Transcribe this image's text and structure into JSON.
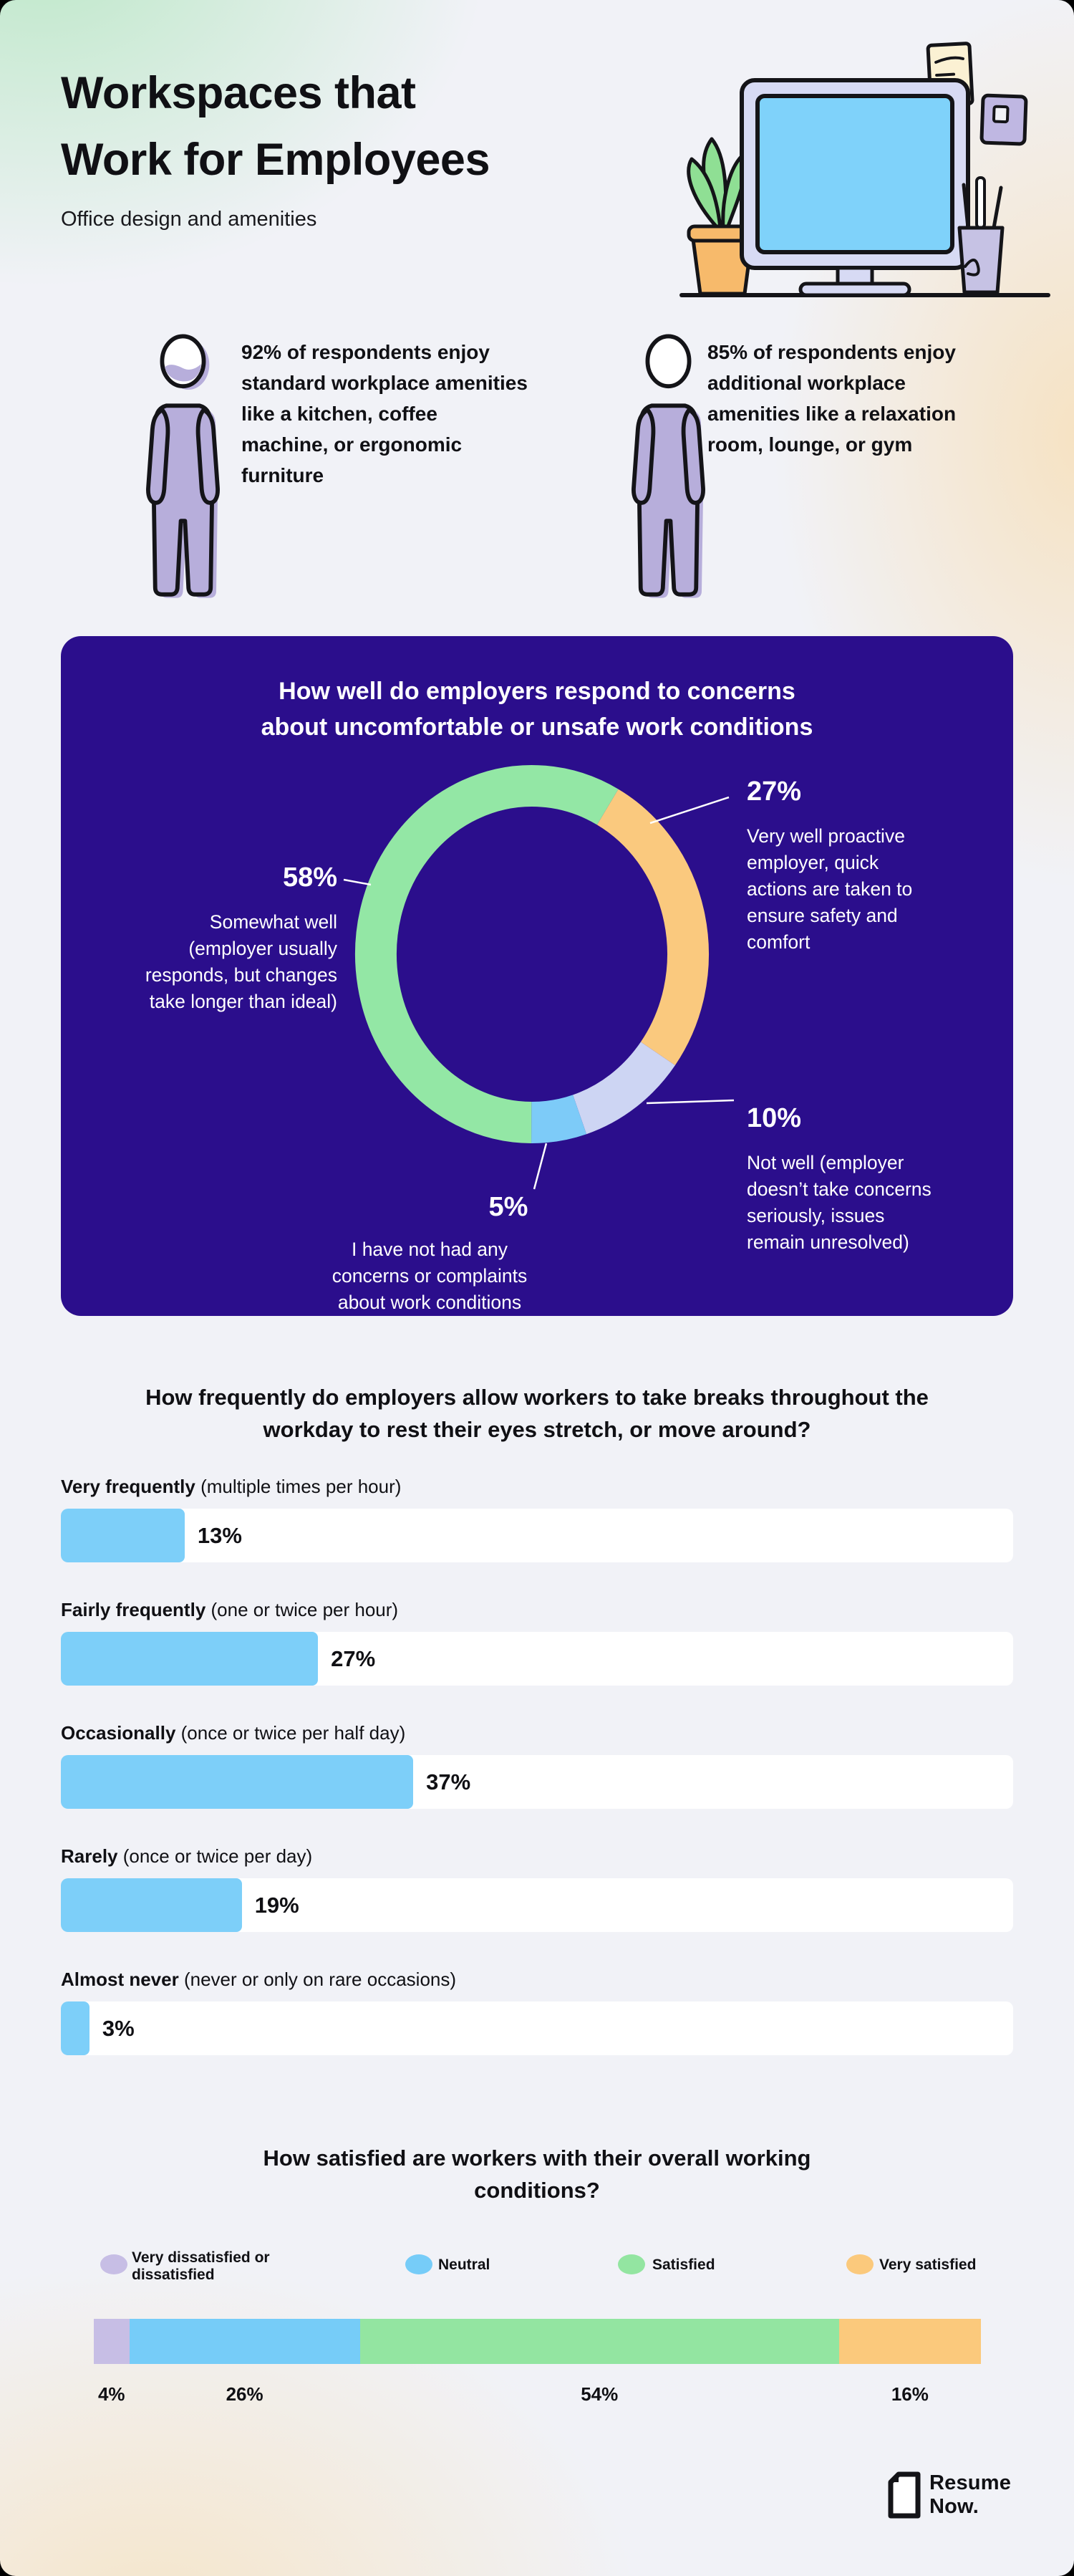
{
  "header": {
    "title": "Workspaces that\nWork for Employees",
    "subtitle": "Office design and amenities"
  },
  "stats": [
    {
      "text": "92% of respondents enjoy standard workplace amenities like a kitchen, coffee machine, or ergonomic furniture"
    },
    {
      "text": "85% of respondents enjoy additional workplace amenities like a relaxation room, lounge, or gym"
    }
  ],
  "donut": {
    "title": "How well do employers respond to concerns\nabout uncomfortable or unsafe work conditions",
    "arc_start_deg": 29,
    "arc_order": [
      1,
      2,
      3,
      0
    ],
    "callouts": [
      {
        "pct": "58%",
        "text": "Somewhat well\n(employer usually\nresponds, but changes\ntake longer than ideal)"
      },
      {
        "pct": "27%",
        "text": "Very well proactive\nemployer, quick\nactions are taken to\nensure safety and\ncomfort"
      },
      {
        "pct": "10%",
        "text": "Not well (employer\ndoesn’t take concerns\nseriously, issues\nremain unresolved)"
      },
      {
        "pct": "5%",
        "text": "I have not had any\nconcerns or complaints\nabout work conditions"
      }
    ]
  },
  "breaks": {
    "title": "How frequently do employers allow workers to take breaks throughout the\nworkday to rest their eyes stretch, or move around?",
    "bars": [
      {
        "b": "Very frequently",
        "r": " (multiple times per hour)",
        "display": "13%"
      },
      {
        "b": "Fairly frequently",
        "r": " (one or twice per hour)",
        "display": "27%"
      },
      {
        "b": "Occasionally",
        "r": " (once or twice per half day)",
        "display": "37%"
      },
      {
        "b": "Rarely",
        "r": " (once or twice per day)",
        "display": "19%"
      },
      {
        "b": "Almost never",
        "r": " (never or only on rare occasions)",
        "display": "3%"
      }
    ]
  },
  "satisfaction": {
    "title": "How satisfied are workers with their overall working\nconditions?",
    "legend": [
      {
        "label": "Very dissatisfied or\ndissatisfied"
      },
      {
        "label": "Neutral"
      },
      {
        "label": "Satisfied"
      },
      {
        "label": "Very satisfied"
      }
    ],
    "value_labels": [
      "4%",
      "26%",
      "54%",
      "16%"
    ]
  },
  "footer": {
    "brand": "Resume\nNow."
  },
  "icons": {
    "person": "person-icon",
    "desk": "desk-workspace-illustration",
    "brand_mark": "document-icon"
  },
  "colors": {
    "panel_bg": "#2B0E8C",
    "bar_blue": "#7DCFF9",
    "background": "#F1F2F7",
    "accent_green_gradient": "#BEE8C9",
    "accent_cream_gradient": "#F6E2C2",
    "person_fill": "#B7AEDB"
  },
  "chart_data": [
    {
      "type": "pie",
      "subtype": "donut",
      "title": "How well do employers respond to concerns about uncomfortable or unsafe work conditions",
      "labels": [
        "Somewhat well (employer usually responds, but changes take longer than ideal)",
        "Very well proactive employer, quick actions are taken to ensure safety and comfort",
        "Not well (employer doesn’t take concerns seriously, issues remain unresolved)",
        "I have not had any concerns or complaints about work conditions"
      ],
      "values": [
        58,
        27,
        10,
        5
      ],
      "colors": [
        "#93E7A5",
        "#FAC97E",
        "#CDD5F3",
        "#7DCBF8"
      ]
    },
    {
      "type": "bar",
      "orientation": "horizontal",
      "title": "How frequently do employers allow workers to take breaks throughout the workday to rest their eyes stretch, or move around?",
      "categories": [
        "Very frequently (multiple times per hour)",
        "Fairly frequently (one or twice per hour)",
        "Occasionally (once or twice per half day)",
        "Rarely (once or twice per day)",
        "Almost never (never or only on rare occasions)"
      ],
      "values": [
        13,
        27,
        37,
        19,
        3
      ],
      "value_labels": [
        "13%",
        "27%",
        "37%",
        "19%",
        "3%"
      ],
      "xlim": [
        0,
        100
      ],
      "color": "#7DCFF9",
      "track_color": "#FFFFFF"
    },
    {
      "type": "bar",
      "subtype": "stacked",
      "title": "How satisfied are workers with their overall working conditions?",
      "categories": [
        "Very dissatisfied or dissatisfied",
        "Neutral",
        "Satisfied",
        "Very satisfied"
      ],
      "values": [
        4,
        26,
        54,
        16
      ],
      "value_labels": [
        "4%",
        "26%",
        "54%",
        "16%"
      ],
      "colors": [
        "#C7BEE5",
        "#76CCF8",
        "#93E5A1",
        "#FBC97C"
      ],
      "legend_position": "top"
    }
  ]
}
